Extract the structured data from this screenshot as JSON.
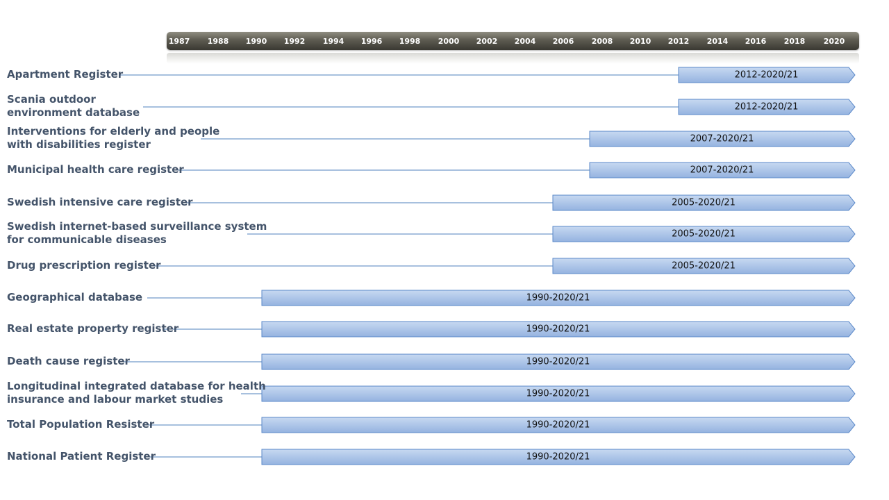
{
  "timeline": {
    "years": [
      "1987",
      "1988",
      "1990",
      "1992",
      "1994",
      "1996",
      "1998",
      "2000",
      "2002",
      "2004",
      "2006",
      "2008",
      "2010",
      "2012",
      "2014",
      "2016",
      "2018",
      "2020"
    ]
  },
  "colors": {
    "bar_fill_top": "#c7d9f1",
    "bar_fill_bottom": "#95b3e0",
    "bar_stroke": "#5b89c9",
    "connector": "#4f81bd",
    "label_text": "#44546a"
  },
  "rows": [
    {
      "label": "Apartment Register",
      "start": "2012",
      "end": "2020/21",
      "range_label": "2012-2020/21"
    },
    {
      "label": "Scania outdoor\nenvironment database",
      "start": "2012",
      "end": "2020/21",
      "range_label": "2012-2020/21"
    },
    {
      "label": "Interventions for elderly and people\nwith disabilities register",
      "start": "2007",
      "end": "2020/21",
      "range_label": "2007-2020/21"
    },
    {
      "label": "Municipal health care register",
      "start": "2007",
      "end": "2020/21",
      "range_label": "2007-2020/21"
    },
    {
      "label": "Swedish intensive care register",
      "start": "2005",
      "end": "2020/21",
      "range_label": "2005-2020/21"
    },
    {
      "label": "Swedish internet-based surveillance system\nfor communicable diseases",
      "start": "2005",
      "end": "2020/21",
      "range_label": "2005-2020/21"
    },
    {
      "label": "Drug prescription register",
      "start": "2005",
      "end": "2020/21",
      "range_label": "2005-2020/21"
    },
    {
      "label": "Geographical database",
      "start": "1990",
      "end": "2020/21",
      "range_label": "1990-2020/21"
    },
    {
      "label": "Real estate property register",
      "start": "1990",
      "end": "2020/21",
      "range_label": "1990-2020/21"
    },
    {
      "label": "Death cause register",
      "start": "1990",
      "end": "2020/21",
      "range_label": "1990-2020/21"
    },
    {
      "label": "Longitudinal integrated database for health\ninsurance and labour market studies",
      "start": "1990",
      "end": "2020/21",
      "range_label": "1990-2020/21"
    },
    {
      "label": "Total Population Resister",
      "start": "1990",
      "end": "2020/21",
      "range_label": "1990-2020/21"
    },
    {
      "label": "National Patient Register",
      "start": "1990",
      "end": "2020/21",
      "range_label": "1990-2020/21"
    }
  ]
}
